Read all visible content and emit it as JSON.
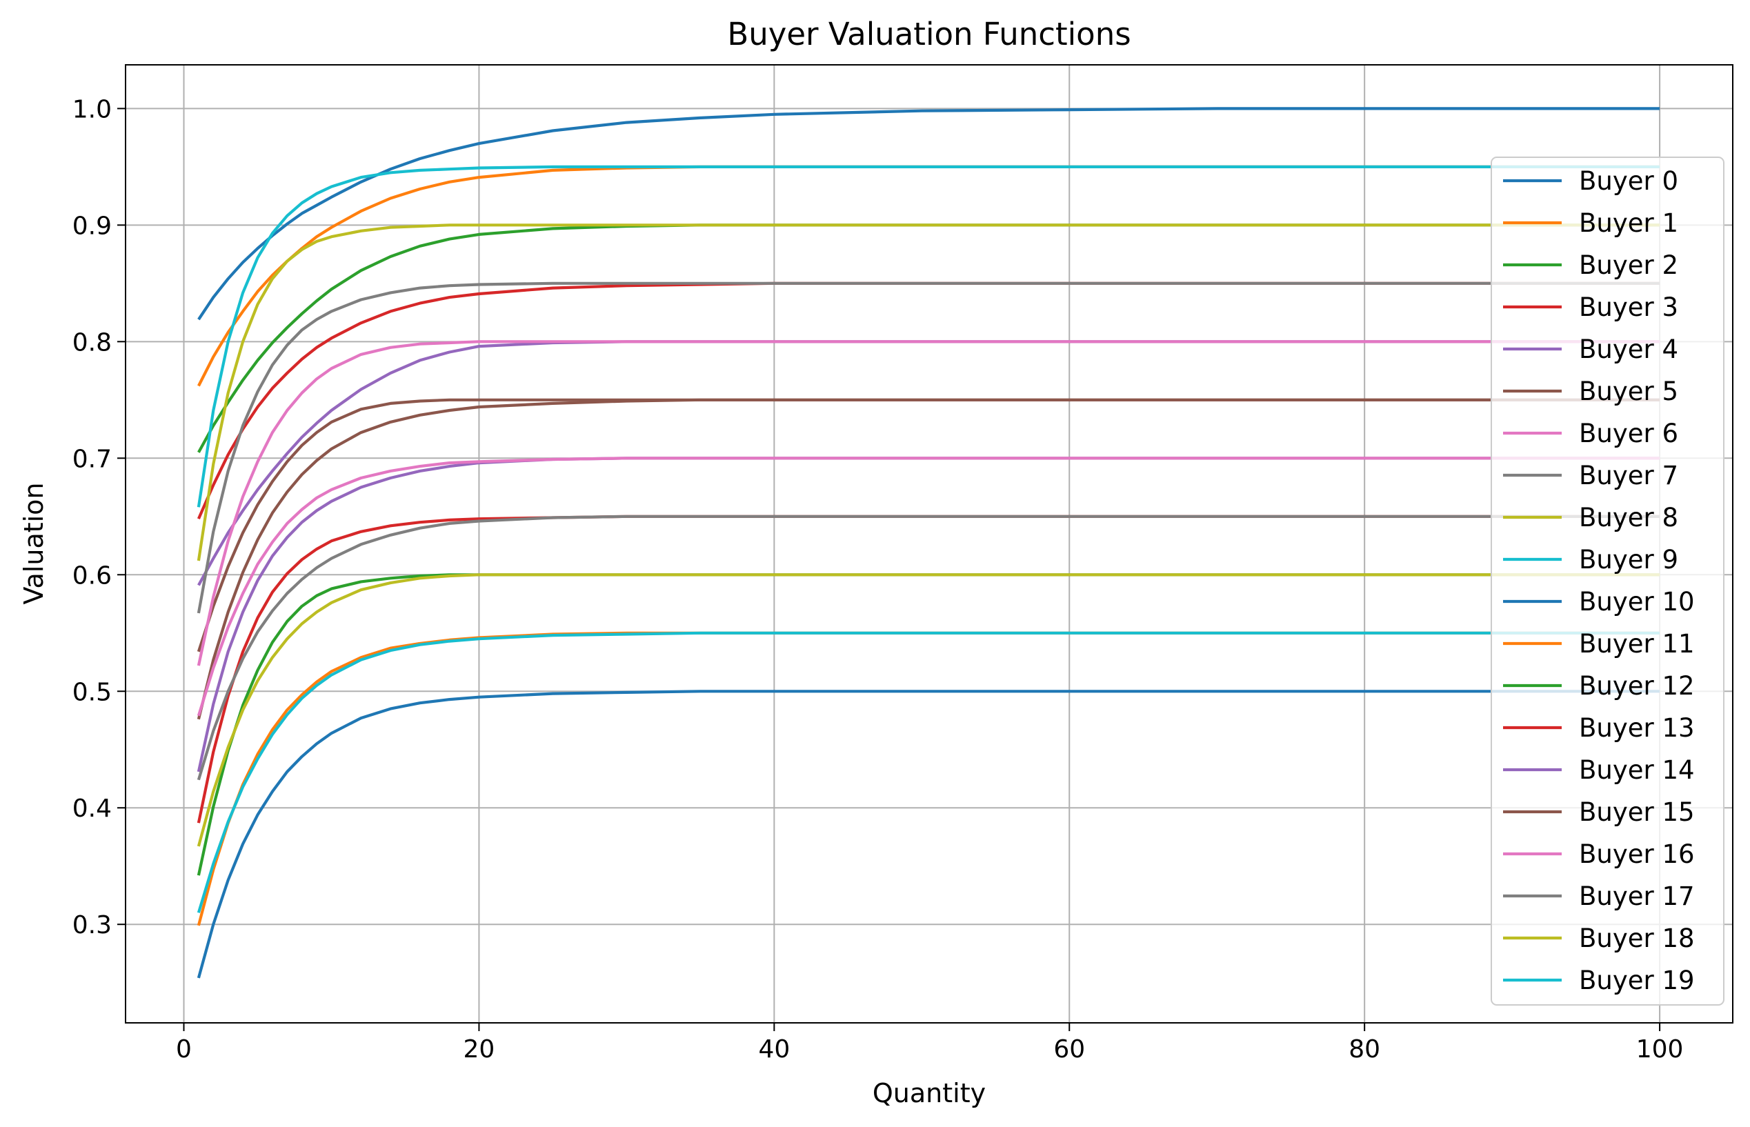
{
  "chart_data": {
    "type": "line",
    "title": "Buyer Valuation Functions",
    "xlabel": "Quantity",
    "ylabel": "Valuation",
    "xlim": [
      -3.95,
      104.95
    ],
    "ylim": [
      0.2155,
      1.0375
    ],
    "xticks": [
      0,
      20,
      40,
      60,
      80,
      100
    ],
    "yticks": [
      0.3,
      0.4,
      0.5,
      0.6,
      0.7,
      0.8,
      0.9,
      1.0
    ],
    "xtick_labels": [
      "0",
      "20",
      "40",
      "60",
      "80",
      "100"
    ],
    "ytick_labels": [
      "0.3",
      "0.4",
      "0.5",
      "0.6",
      "0.7",
      "0.8",
      "0.9",
      "1.0"
    ],
    "grid": true,
    "legend_position": "right",
    "colors": [
      "#1f77b4",
      "#ff7f0e",
      "#2ca02c",
      "#d62728",
      "#9467bd",
      "#8c564b",
      "#e377c2",
      "#7f7f7f",
      "#bcbd22",
      "#17becf"
    ],
    "x": [
      1,
      2,
      3,
      4,
      5,
      6,
      7,
      8,
      9,
      10,
      12,
      14,
      16,
      18,
      20,
      25,
      30,
      35,
      40,
      50,
      60,
      70,
      80,
      90,
      100
    ],
    "series": [
      {
        "name": "Buyer 0",
        "values": [
          0.819,
          0.838,
          0.854,
          0.868,
          0.88,
          0.891,
          0.901,
          0.91,
          0.917,
          0.924,
          0.937,
          0.948,
          0.957,
          0.964,
          0.97,
          0.981,
          0.988,
          0.992,
          0.995,
          0.998,
          0.999,
          1.0,
          1.0,
          1.0,
          1.0
        ]
      },
      {
        "name": "Buyer 1",
        "values": [
          0.762,
          0.787,
          0.808,
          0.826,
          0.843,
          0.857,
          0.869,
          0.88,
          0.89,
          0.898,
          0.912,
          0.923,
          0.931,
          0.937,
          0.941,
          0.947,
          0.949,
          0.95,
          0.95,
          0.95,
          0.95,
          0.95,
          0.95,
          0.95,
          0.95
        ]
      },
      {
        "name": "Buyer 2",
        "values": [
          0.705,
          0.728,
          0.748,
          0.767,
          0.784,
          0.799,
          0.812,
          0.824,
          0.835,
          0.845,
          0.861,
          0.873,
          0.882,
          0.888,
          0.892,
          0.897,
          0.899,
          0.9,
          0.9,
          0.9,
          0.9,
          0.9,
          0.9,
          0.9,
          0.9
        ]
      },
      {
        "name": "Buyer 3",
        "values": [
          0.648,
          0.677,
          0.703,
          0.725,
          0.744,
          0.76,
          0.773,
          0.785,
          0.795,
          0.803,
          0.816,
          0.826,
          0.833,
          0.838,
          0.841,
          0.846,
          0.848,
          0.849,
          0.85,
          0.85,
          0.85,
          0.85,
          0.85,
          0.85,
          0.85
        ]
      },
      {
        "name": "Buyer 4",
        "values": [
          0.591,
          0.614,
          0.636,
          0.655,
          0.673,
          0.689,
          0.704,
          0.718,
          0.73,
          0.741,
          0.759,
          0.773,
          0.784,
          0.791,
          0.796,
          0.799,
          0.8,
          0.8,
          0.8,
          0.8,
          0.8,
          0.8,
          0.8,
          0.8,
          0.8
        ]
      },
      {
        "name": "Buyer 5",
        "values": [
          0.534,
          0.573,
          0.607,
          0.636,
          0.66,
          0.68,
          0.697,
          0.711,
          0.722,
          0.731,
          0.742,
          0.747,
          0.749,
          0.75,
          0.75,
          0.75,
          0.75,
          0.75,
          0.75,
          0.75,
          0.75,
          0.75,
          0.75,
          0.75,
          0.75
        ]
      },
      {
        "name": "Buyer 6",
        "values": [
          0.522,
          0.581,
          0.629,
          0.667,
          0.697,
          0.722,
          0.741,
          0.756,
          0.768,
          0.777,
          0.789,
          0.795,
          0.798,
          0.799,
          0.8,
          0.8,
          0.8,
          0.8,
          0.8,
          0.8,
          0.8,
          0.8,
          0.8,
          0.8,
          0.8
        ]
      },
      {
        "name": "Buyer 7",
        "values": [
          0.567,
          0.637,
          0.689,
          0.728,
          0.757,
          0.78,
          0.797,
          0.81,
          0.819,
          0.826,
          0.836,
          0.842,
          0.846,
          0.848,
          0.849,
          0.85,
          0.85,
          0.85,
          0.85,
          0.85,
          0.85,
          0.85,
          0.85,
          0.85,
          0.85
        ]
      },
      {
        "name": "Buyer 8",
        "values": [
          0.612,
          0.695,
          0.756,
          0.8,
          0.832,
          0.854,
          0.869,
          0.879,
          0.886,
          0.89,
          0.895,
          0.898,
          0.899,
          0.9,
          0.9,
          0.9,
          0.9,
          0.9,
          0.9,
          0.9,
          0.9,
          0.9,
          0.9,
          0.9,
          0.9
        ]
      },
      {
        "name": "Buyer 9",
        "values": [
          0.658,
          0.741,
          0.8,
          0.842,
          0.872,
          0.893,
          0.908,
          0.919,
          0.927,
          0.933,
          0.941,
          0.945,
          0.947,
          0.948,
          0.949,
          0.95,
          0.95,
          0.95,
          0.95,
          0.95,
          0.95,
          0.95,
          0.95,
          0.95,
          0.95
        ]
      },
      {
        "name": "Buyer 10",
        "values": [
          0.254,
          0.3,
          0.338,
          0.369,
          0.394,
          0.414,
          0.431,
          0.444,
          0.455,
          0.464,
          0.477,
          0.485,
          0.49,
          0.493,
          0.495,
          0.498,
          0.499,
          0.5,
          0.5,
          0.5,
          0.5,
          0.5,
          0.5,
          0.5,
          0.5
        ]
      },
      {
        "name": "Buyer 11",
        "values": [
          0.299,
          0.347,
          0.387,
          0.42,
          0.446,
          0.467,
          0.484,
          0.497,
          0.508,
          0.517,
          0.529,
          0.537,
          0.541,
          0.544,
          0.546,
          0.549,
          0.55,
          0.55,
          0.55,
          0.55,
          0.55,
          0.55,
          0.55,
          0.55,
          0.55
        ]
      },
      {
        "name": "Buyer 12",
        "values": [
          0.342,
          0.401,
          0.449,
          0.488,
          0.518,
          0.542,
          0.56,
          0.573,
          0.582,
          0.588,
          0.594,
          0.597,
          0.599,
          0.6,
          0.6,
          0.6,
          0.6,
          0.6,
          0.6,
          0.6,
          0.6,
          0.6,
          0.6,
          0.6,
          0.6
        ]
      },
      {
        "name": "Buyer 13",
        "values": [
          0.387,
          0.448,
          0.496,
          0.534,
          0.563,
          0.585,
          0.601,
          0.613,
          0.622,
          0.629,
          0.637,
          0.642,
          0.645,
          0.647,
          0.648,
          0.649,
          0.65,
          0.65,
          0.65,
          0.65,
          0.65,
          0.65,
          0.65,
          0.65,
          0.65
        ]
      },
      {
        "name": "Buyer 14",
        "values": [
          0.431,
          0.489,
          0.534,
          0.568,
          0.595,
          0.616,
          0.632,
          0.645,
          0.655,
          0.663,
          0.675,
          0.683,
          0.689,
          0.693,
          0.696,
          0.699,
          0.7,
          0.7,
          0.7,
          0.7,
          0.7,
          0.7,
          0.7,
          0.7,
          0.7
        ]
      },
      {
        "name": "Buyer 15",
        "values": [
          0.476,
          0.527,
          0.568,
          0.602,
          0.63,
          0.653,
          0.671,
          0.686,
          0.698,
          0.708,
          0.722,
          0.731,
          0.737,
          0.741,
          0.744,
          0.747,
          0.749,
          0.75,
          0.75,
          0.75,
          0.75,
          0.75,
          0.75,
          0.75,
          0.75
        ]
      },
      {
        "name": "Buyer 16",
        "values": [
          0.479,
          0.52,
          0.555,
          0.584,
          0.609,
          0.628,
          0.644,
          0.656,
          0.666,
          0.673,
          0.683,
          0.689,
          0.693,
          0.696,
          0.697,
          0.699,
          0.7,
          0.7,
          0.7,
          0.7,
          0.7,
          0.7,
          0.7,
          0.7,
          0.7
        ]
      },
      {
        "name": "Buyer 17",
        "values": [
          0.424,
          0.466,
          0.5,
          0.528,
          0.551,
          0.569,
          0.584,
          0.596,
          0.606,
          0.614,
          0.626,
          0.634,
          0.64,
          0.644,
          0.646,
          0.649,
          0.65,
          0.65,
          0.65,
          0.65,
          0.65,
          0.65,
          0.65,
          0.65,
          0.65
        ]
      },
      {
        "name": "Buyer 18",
        "values": [
          0.367,
          0.414,
          0.452,
          0.484,
          0.509,
          0.529,
          0.545,
          0.558,
          0.568,
          0.576,
          0.587,
          0.593,
          0.597,
          0.599,
          0.6,
          0.6,
          0.6,
          0.6,
          0.6,
          0.6,
          0.6,
          0.6,
          0.6,
          0.6,
          0.6
        ]
      },
      {
        "name": "Buyer 19",
        "values": [
          0.31,
          0.352,
          0.388,
          0.418,
          0.442,
          0.463,
          0.48,
          0.494,
          0.505,
          0.514,
          0.527,
          0.535,
          0.54,
          0.543,
          0.545,
          0.548,
          0.549,
          0.55,
          0.55,
          0.55,
          0.55,
          0.55,
          0.55,
          0.55,
          0.55
        ]
      }
    ]
  }
}
